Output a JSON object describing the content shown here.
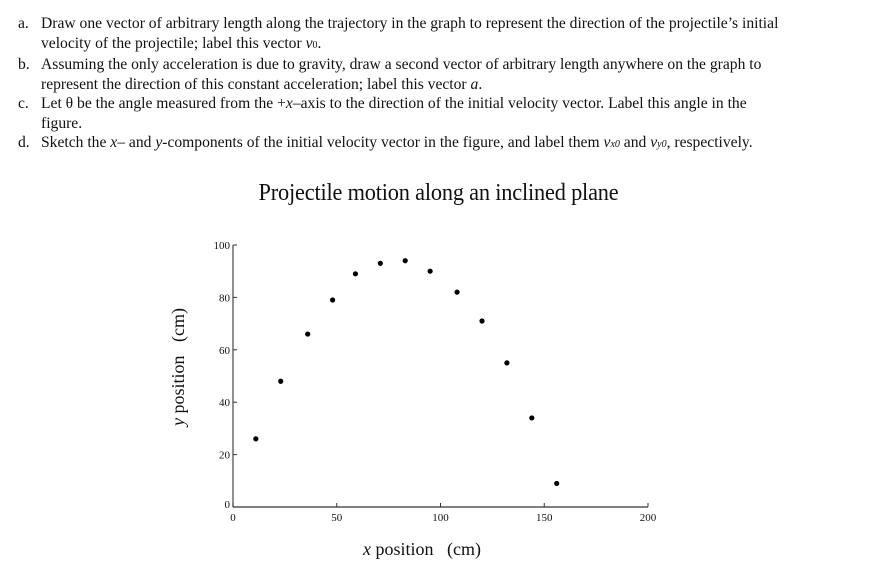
{
  "questions": [
    {
      "letter": "a.",
      "line1": "Draw one vector of arbitrary length along the trajectory in the graph to represent the direction of the projectile’s initial",
      "line2_pre": "velocity of the projectile; label this vector ",
      "line2_var": "v",
      "line2_sub": "0",
      "line2_post": "."
    },
    {
      "letter": "b.",
      "line1": "Assuming the only acceleration is due to gravity, draw a second vector of arbitrary length anywhere on the graph to",
      "line2_pre": "represent the direction of this constant acceleration; label this vector ",
      "line2_var": "a",
      "line2_post": "."
    },
    {
      "letter": "c.",
      "line1_pre": "Let θ be the angle measured from the +",
      "line1_var": "x",
      "line1_post": "–axis to the direction of the initial velocity vector.  Label this angle in the",
      "line2": "figure."
    },
    {
      "letter": "d.",
      "pre": "Sketch the ",
      "var_x": "x",
      "mid1": "– and ",
      "var_y": "y",
      "mid2": "-components of the initial velocity vector in the figure, and label them ",
      "vx": "v",
      "vx_sub": "x0",
      "and": " and ",
      "vy": "v",
      "vy_sub": "y0",
      "post": ", respectively."
    }
  ],
  "chart_data": {
    "type": "scatter",
    "title": "Projectile motion along an inclined plane",
    "xlabel_var": "x",
    "xlabel": "x position   (cm)",
    "xlabel_rest": " position   (cm)",
    "ylabel_var": "y",
    "ylabel": "y position   (cm)",
    "ylabel_rest": " position   (cm)",
    "xlim": [
      0,
      200
    ],
    "ylim": [
      0,
      100
    ],
    "xticks": [
      0,
      50,
      100,
      150,
      200
    ],
    "yticks": [
      0,
      20,
      40,
      60,
      80,
      100
    ],
    "grid": false,
    "legend": null,
    "x": [
      11,
      23,
      36,
      48,
      59,
      71,
      83,
      95,
      108,
      120,
      132,
      144,
      156
    ],
    "y": [
      26,
      48,
      66,
      79,
      89,
      93,
      94,
      90,
      82,
      71,
      55,
      34,
      9
    ],
    "marker_color": "#000000"
  }
}
